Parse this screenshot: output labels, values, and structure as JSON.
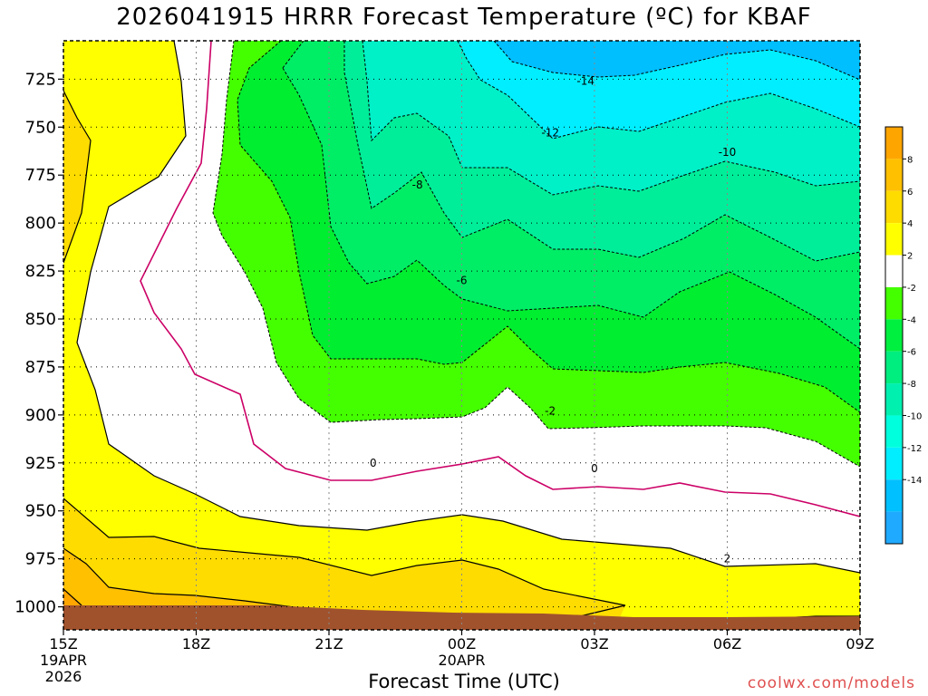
{
  "title": "2026041915 HRRR Forecast Temperature (ºC) for KBAF",
  "xlabel": "Forecast Time (UTC)",
  "credit": "coolwx.com/models",
  "chart_data": {
    "type": "contour",
    "y_axis": {
      "label": "",
      "ticks": [
        725,
        750,
        775,
        800,
        825,
        850,
        875,
        900,
        925,
        950,
        975,
        1000
      ],
      "range": [
        705,
        1012
      ],
      "orientation": "pressure-decreasing-upward"
    },
    "x_axis": {
      "range_hours": [
        0,
        18
      ],
      "ticks": [
        {
          "hour": 0,
          "label": "15Z",
          "sub1": "19APR",
          "sub2": "2026"
        },
        {
          "hour": 3,
          "label": "18Z",
          "sub1": "",
          "sub2": ""
        },
        {
          "hour": 6,
          "label": "21Z",
          "sub1": "",
          "sub2": ""
        },
        {
          "hour": 9,
          "label": "00Z",
          "sub1": "20APR",
          "sub2": ""
        },
        {
          "hour": 12,
          "label": "03Z",
          "sub1": "",
          "sub2": ""
        },
        {
          "hour": 15,
          "label": "06Z",
          "sub1": "",
          "sub2": ""
        },
        {
          "hour": 18,
          "label": "09Z",
          "sub1": "",
          "sub2": ""
        }
      ]
    },
    "grid": true,
    "contour_labels": [
      {
        "value": "-14",
        "hour": 11.8,
        "p": 726
      },
      {
        "value": "-12",
        "hour": 11.0,
        "p": 753
      },
      {
        "value": "-10",
        "hour": 15.0,
        "p": 763
      },
      {
        "value": "-8",
        "hour": 8.0,
        "p": 780
      },
      {
        "value": "-6",
        "hour": 9.0,
        "p": 830
      },
      {
        "value": "-2",
        "hour": 11.0,
        "p": 898
      },
      {
        "value": "0",
        "hour": 7.0,
        "p": 925
      },
      {
        "value": "0",
        "hour": 12.0,
        "p": 928
      },
      {
        "value": "2",
        "hour": 15.0,
        "p": 975
      }
    ],
    "colorbar": {
      "labels": [
        "8",
        "6",
        "4",
        "2",
        "-2",
        "-4",
        "-6",
        "-8",
        "-10",
        "-12",
        "-14"
      ],
      "colors": [
        "#ffa500",
        "#ffc000",
        "#ffdc00",
        "#ffff00",
        "#ffffff",
        "#44ff00",
        "#00f040",
        "#00ee80",
        "#00f0b0",
        "#00ffdd",
        "#00eeff",
        "#00c0ff",
        "#20aaff"
      ]
    },
    "colors": {
      "t_gt6": "#ffa500",
      "t_4_6": "#ffc000",
      "t_2_4": "#ffdc00",
      "t_0_2": "#ffff00",
      "t_m2_0": "#ffffff",
      "t_m4_m2": "#44ff00",
      "t_m6_m4": "#00ee30",
      "t_m8_m6": "#00ee66",
      "t_m10_m8": "#00ee99",
      "t_m12_m10": "#00f0c8",
      "t_m14_m12": "#00eeff",
      "t_lt_m14": "#00bfff",
      "ground": "#a0522d",
      "zero_line": "#cc0066"
    }
  }
}
